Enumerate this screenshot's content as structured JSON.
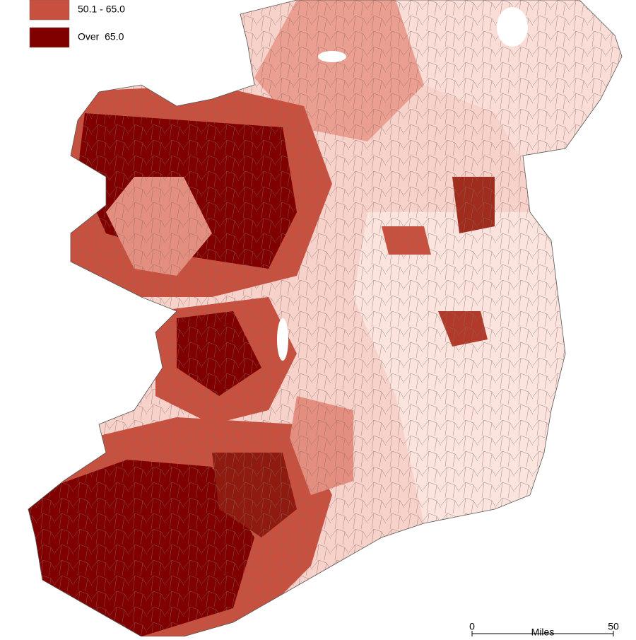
{
  "legend": {
    "items": [
      {
        "label": "50.1 - 65.0",
        "color": "#c8503f"
      },
      {
        "label": "Over  65.0",
        "color": "#800000"
      }
    ]
  },
  "scale_bar": {
    "start": "0",
    "unit": "Miles",
    "end": "50"
  }
}
